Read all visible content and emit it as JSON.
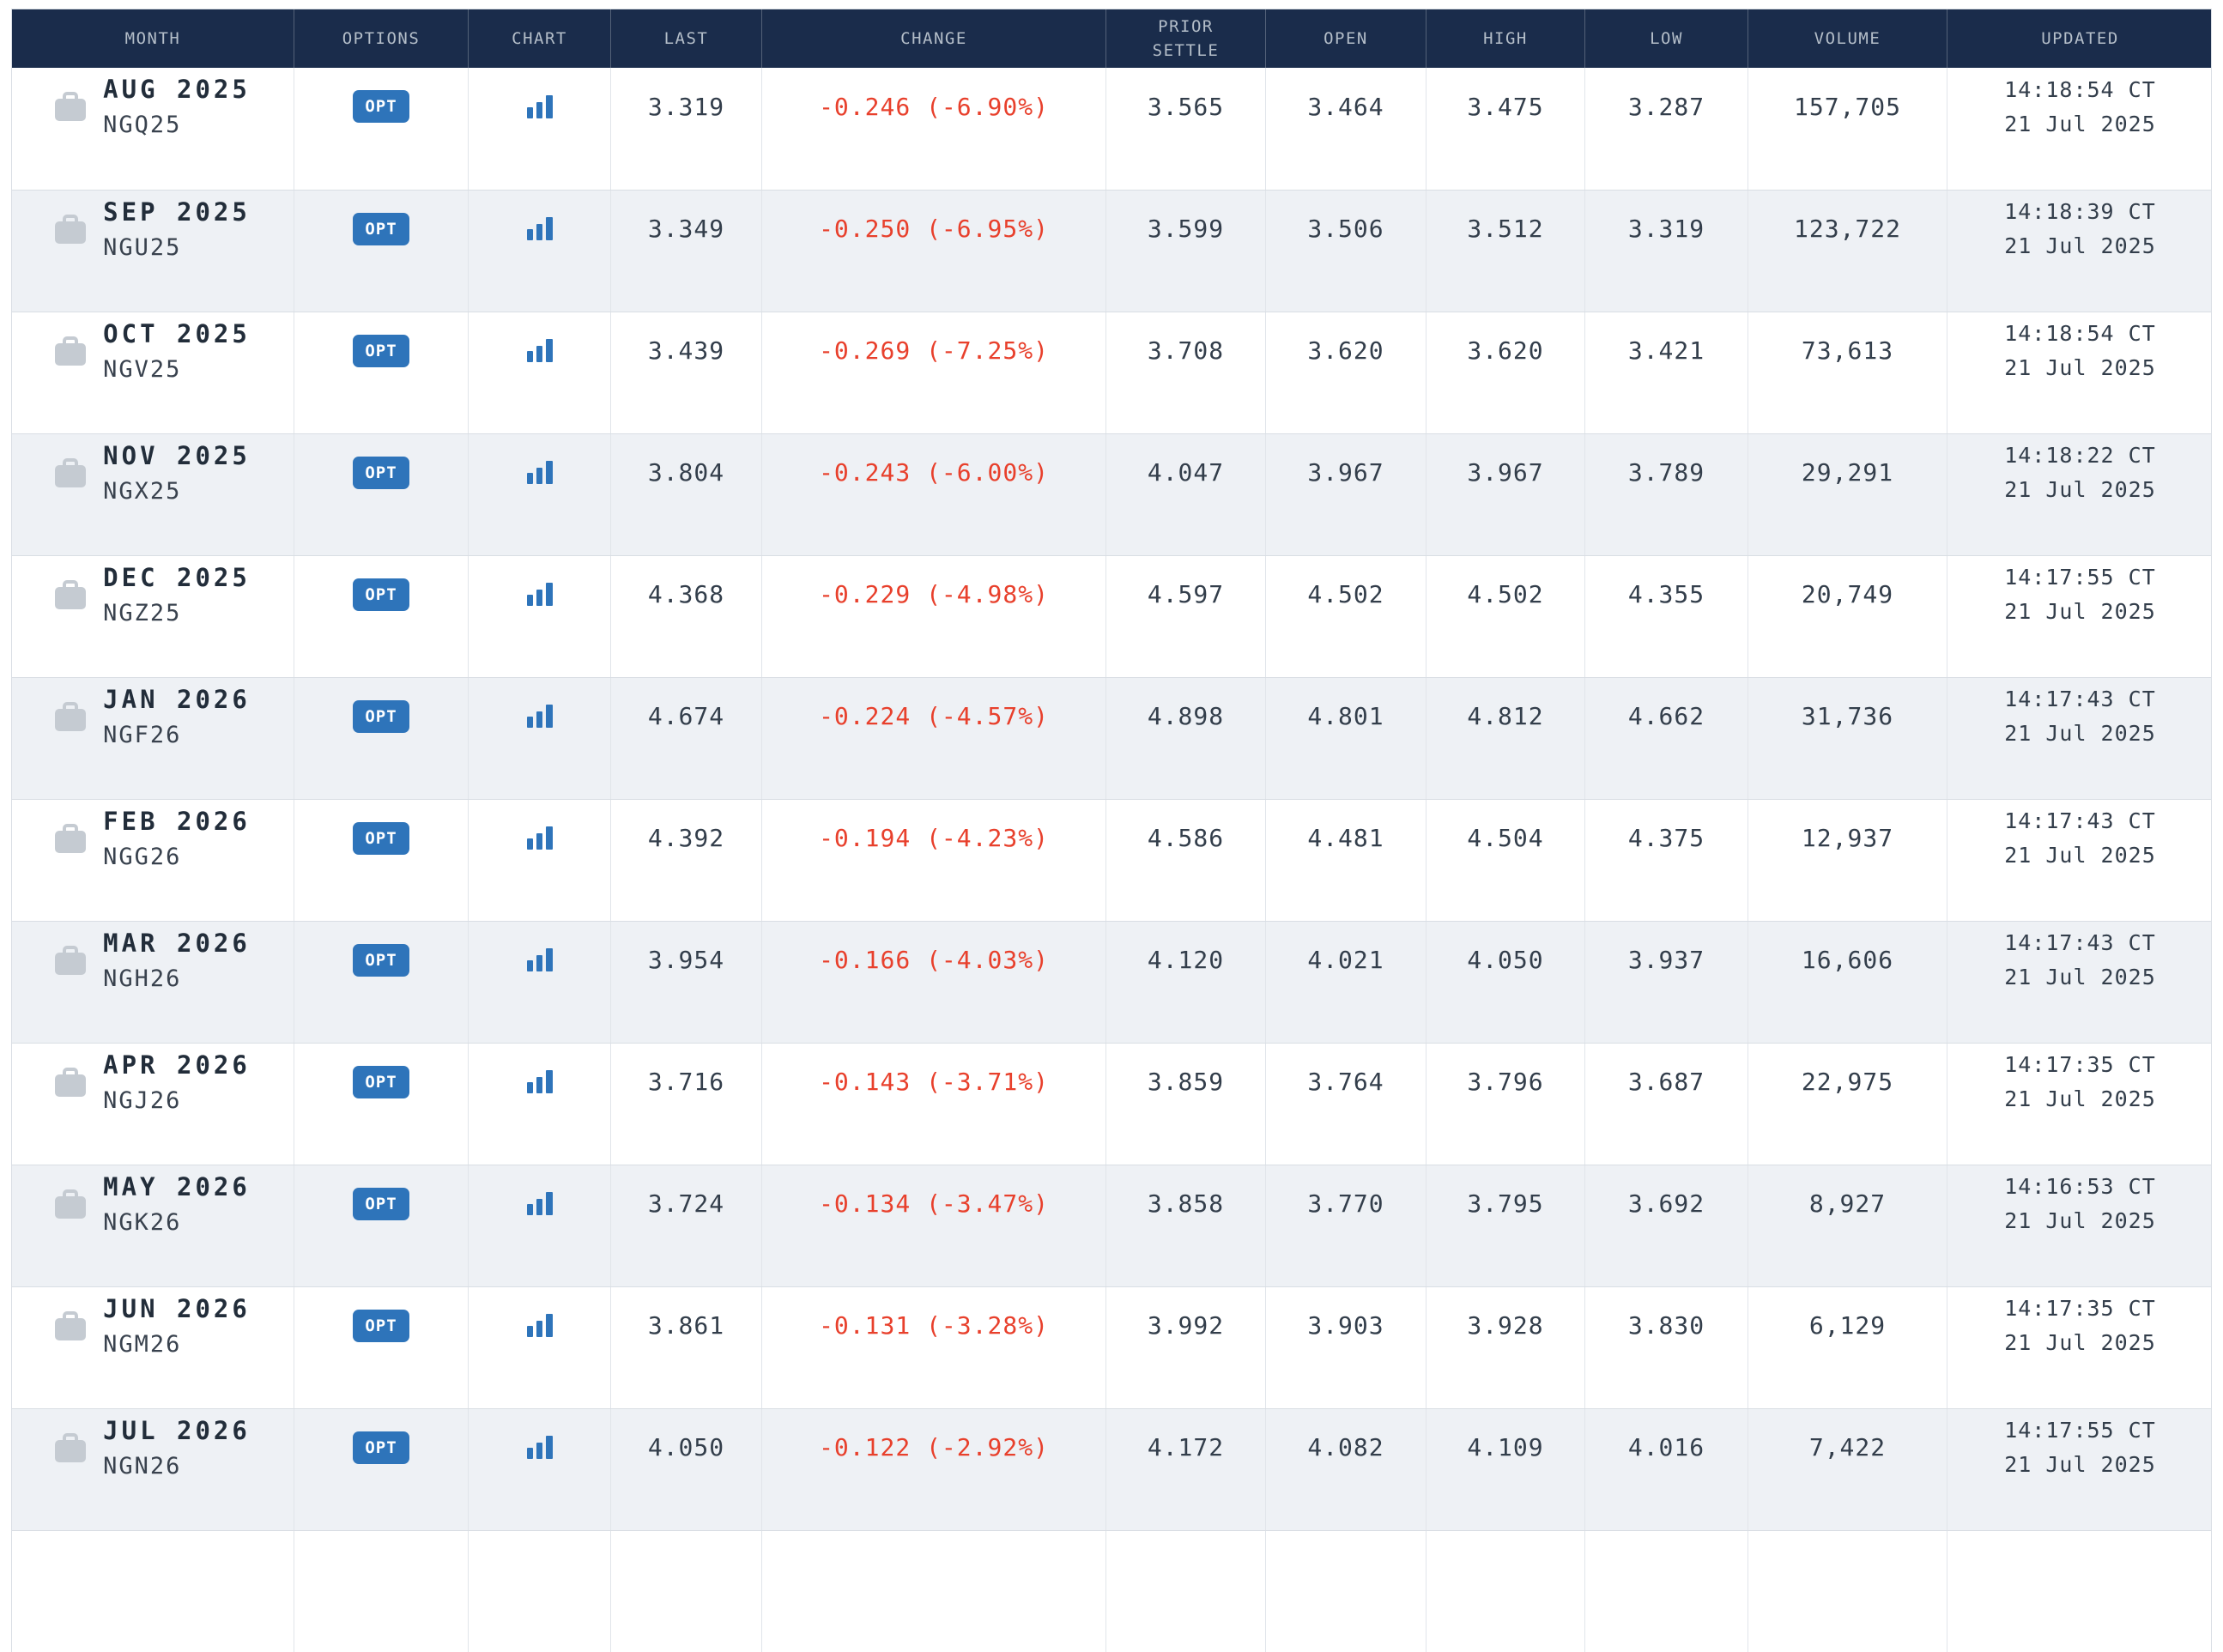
{
  "table": {
    "columns": [
      "MONTH",
      "OPTIONS",
      "CHART",
      "LAST",
      "CHANGE",
      "PRIOR SETTLE",
      "OPEN",
      "HIGH",
      "LOW",
      "VOLUME",
      "UPDATED"
    ],
    "options_button_label": "OPT",
    "icons": {
      "month": "briefcase-icon",
      "chart": "bar-chart-icon"
    },
    "rows": [
      {
        "month": "AUG 2025",
        "code": "NGQ25",
        "last": "3.319",
        "change": "-0.246 (-6.90%)",
        "prior_settle": "3.565",
        "open": "3.464",
        "high": "3.475",
        "low": "3.287",
        "volume": "157,705",
        "updated_time": "14:18:54 CT",
        "updated_date": "21 Jul 2025"
      },
      {
        "month": "SEP 2025",
        "code": "NGU25",
        "last": "3.349",
        "change": "-0.250 (-6.95%)",
        "prior_settle": "3.599",
        "open": "3.506",
        "high": "3.512",
        "low": "3.319",
        "volume": "123,722",
        "updated_time": "14:18:39 CT",
        "updated_date": "21 Jul 2025"
      },
      {
        "month": "OCT 2025",
        "code": "NGV25",
        "last": "3.439",
        "change": "-0.269 (-7.25%)",
        "prior_settle": "3.708",
        "open": "3.620",
        "high": "3.620",
        "low": "3.421",
        "volume": "73,613",
        "updated_time": "14:18:54 CT",
        "updated_date": "21 Jul 2025"
      },
      {
        "month": "NOV 2025",
        "code": "NGX25",
        "last": "3.804",
        "change": "-0.243 (-6.00%)",
        "prior_settle": "4.047",
        "open": "3.967",
        "high": "3.967",
        "low": "3.789",
        "volume": "29,291",
        "updated_time": "14:18:22 CT",
        "updated_date": "21 Jul 2025"
      },
      {
        "month": "DEC 2025",
        "code": "NGZ25",
        "last": "4.368",
        "change": "-0.229 (-4.98%)",
        "prior_settle": "4.597",
        "open": "4.502",
        "high": "4.502",
        "low": "4.355",
        "volume": "20,749",
        "updated_time": "14:17:55 CT",
        "updated_date": "21 Jul 2025"
      },
      {
        "month": "JAN 2026",
        "code": "NGF26",
        "last": "4.674",
        "change": "-0.224 (-4.57%)",
        "prior_settle": "4.898",
        "open": "4.801",
        "high": "4.812",
        "low": "4.662",
        "volume": "31,736",
        "updated_time": "14:17:43 CT",
        "updated_date": "21 Jul 2025"
      },
      {
        "month": "FEB 2026",
        "code": "NGG26",
        "last": "4.392",
        "change": "-0.194 (-4.23%)",
        "prior_settle": "4.586",
        "open": "4.481",
        "high": "4.504",
        "low": "4.375",
        "volume": "12,937",
        "updated_time": "14:17:43 CT",
        "updated_date": "21 Jul 2025"
      },
      {
        "month": "MAR 2026",
        "code": "NGH26",
        "last": "3.954",
        "change": "-0.166 (-4.03%)",
        "prior_settle": "4.120",
        "open": "4.021",
        "high": "4.050",
        "low": "3.937",
        "volume": "16,606",
        "updated_time": "14:17:43 CT",
        "updated_date": "21 Jul 2025"
      },
      {
        "month": "APR 2026",
        "code": "NGJ26",
        "last": "3.716",
        "change": "-0.143 (-3.71%)",
        "prior_settle": "3.859",
        "open": "3.764",
        "high": "3.796",
        "low": "3.687",
        "volume": "22,975",
        "updated_time": "14:17:35 CT",
        "updated_date": "21 Jul 2025"
      },
      {
        "month": "MAY 2026",
        "code": "NGK26",
        "last": "3.724",
        "change": "-0.134 (-3.47%)",
        "prior_settle": "3.858",
        "open": "3.770",
        "high": "3.795",
        "low": "3.692",
        "volume": "8,927",
        "updated_time": "14:16:53 CT",
        "updated_date": "21 Jul 2025"
      },
      {
        "month": "JUN 2026",
        "code": "NGM26",
        "last": "3.861",
        "change": "-0.131 (-3.28%)",
        "prior_settle": "3.992",
        "open": "3.903",
        "high": "3.928",
        "low": "3.830",
        "volume": "6,129",
        "updated_time": "14:17:35 CT",
        "updated_date": "21 Jul 2025"
      },
      {
        "month": "JUL 2026",
        "code": "NGN26",
        "last": "4.050",
        "change": "-0.122 (-2.92%)",
        "prior_settle": "4.172",
        "open": "4.082",
        "high": "4.109",
        "low": "4.016",
        "volume": "7,422",
        "updated_time": "14:17:55 CT",
        "updated_date": "21 Jul 2025"
      }
    ]
  },
  "colors": {
    "header_bg": "#1a2c4b",
    "header_text": "#b4bec9",
    "row_bg": "#ffffff",
    "row_alt_bg": "#eef1f5",
    "border": "#d9dee4",
    "text": "#333e4b",
    "month_text": "#222d3a",
    "negative": "#e8402c",
    "accent_blue": "#2e74ba",
    "icon_gray": "#c5cbd2"
  }
}
